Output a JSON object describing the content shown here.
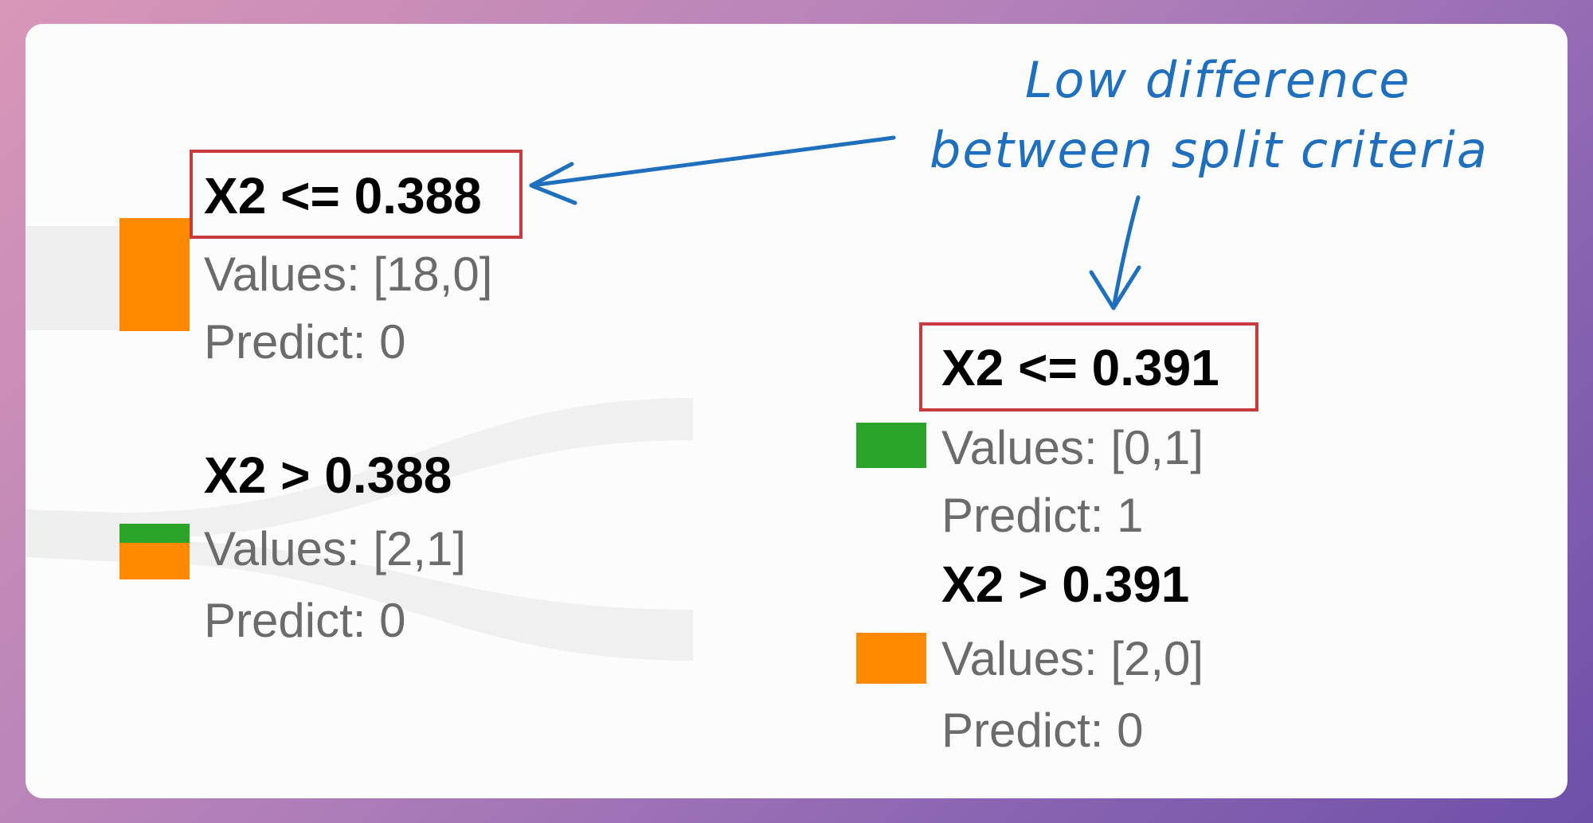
{
  "colors": {
    "class0": "#ff8a00",
    "class1": "#2aa52a",
    "highlight": "#c73a3d",
    "annotation": "#1f6fbf",
    "link": "#efefef"
  },
  "nodes": {
    "left_top": {
      "rule": "X2 <= 0.388",
      "values": "Values: [18,0]",
      "predict": "Predict: 0",
      "fraction_class1": 0
    },
    "left_bottom": {
      "rule": "X2 > 0.388",
      "values": "Values: [2,1]",
      "predict": "Predict: 0",
      "fraction_class1": 0.333
    },
    "right_top": {
      "rule": "X2 <= 0.391",
      "values": "Values: [0,1]",
      "predict": "Predict: 1",
      "fraction_class1": 1
    },
    "right_bottom": {
      "rule": "X2 > 0.391",
      "values": "Values: [2,0]",
      "predict": "Predict: 0",
      "fraction_class1": 0
    }
  },
  "annotation": {
    "line1": "Low difference",
    "line2": "between split criteria"
  }
}
